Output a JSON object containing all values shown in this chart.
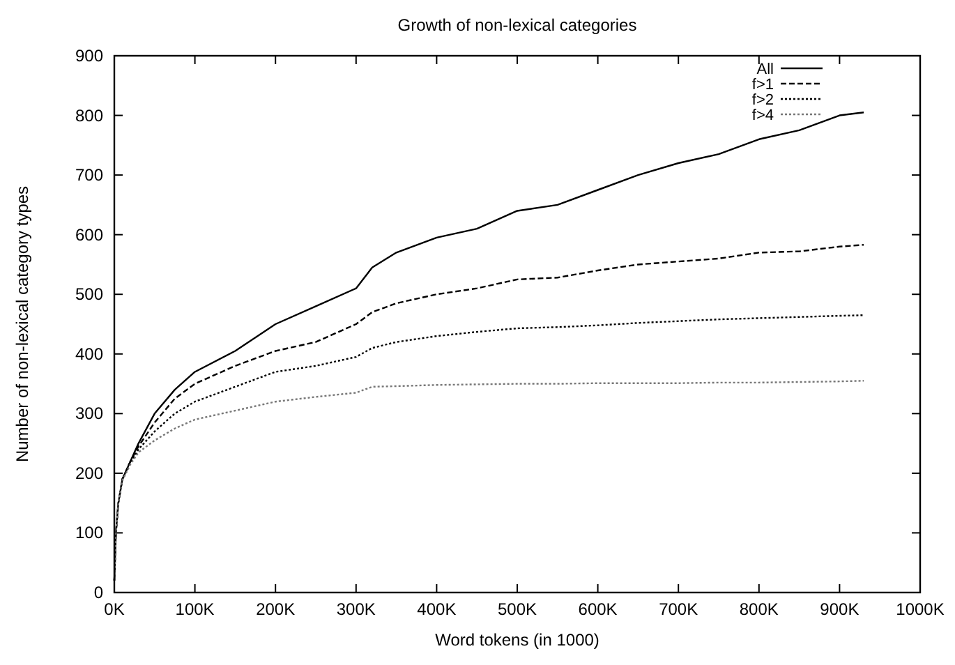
{
  "chart_data": {
    "type": "line",
    "title": "Growth of non-lexical categories",
    "xlabel": "Word tokens (in 1000)",
    "ylabel": "Number of non-lexical category types",
    "x": [
      0,
      2,
      5,
      10,
      20,
      30,
      50,
      75,
      100,
      150,
      200,
      250,
      300,
      320,
      350,
      400,
      450,
      500,
      550,
      600,
      650,
      700,
      750,
      800,
      850,
      900,
      930
    ],
    "series": [
      {
        "name": "All",
        "color": "#000000",
        "line_style": "solid",
        "values": [
          20,
          100,
          150,
          190,
          220,
          250,
          300,
          340,
          370,
          405,
          450,
          480,
          510,
          545,
          570,
          595,
          610,
          640,
          650,
          675,
          700,
          720,
          735,
          760,
          775,
          800,
          805
        ]
      },
      {
        "name": "f>1",
        "color": "#000000",
        "line_style": "dashed",
        "values": [
          20,
          100,
          150,
          190,
          220,
          245,
          285,
          325,
          350,
          380,
          405,
          420,
          450,
          470,
          485,
          500,
          510,
          525,
          528,
          540,
          550,
          555,
          560,
          570,
          572,
          580,
          583
        ]
      },
      {
        "name": "f>2",
        "color": "#000000",
        "line_style": "dotted",
        "values": [
          20,
          100,
          150,
          190,
          218,
          240,
          270,
          300,
          320,
          345,
          370,
          380,
          395,
          410,
          420,
          430,
          437,
          443,
          445,
          448,
          452,
          455,
          458,
          460,
          462,
          464,
          465
        ]
      },
      {
        "name": "f>4",
        "color": "#777777",
        "line_style": "dotted",
        "values": [
          20,
          100,
          150,
          188,
          215,
          235,
          255,
          275,
          290,
          305,
          320,
          328,
          335,
          345,
          346,
          348,
          349,
          350,
          350,
          351,
          351,
          351,
          352,
          352,
          353,
          354,
          355
        ]
      }
    ],
    "xlim": [
      0,
      1000
    ],
    "xticks": [
      {
        "value": 0,
        "label": "0K"
      },
      {
        "value": 100,
        "label": "100K"
      },
      {
        "value": 200,
        "label": "200K"
      },
      {
        "value": 300,
        "label": "300K"
      },
      {
        "value": 400,
        "label": "400K"
      },
      {
        "value": 500,
        "label": "500K"
      },
      {
        "value": 600,
        "label": "600K"
      },
      {
        "value": 700,
        "label": "700K"
      },
      {
        "value": 800,
        "label": "800K"
      },
      {
        "value": 900,
        "label": "900K"
      },
      {
        "value": 1000,
        "label": "1000K"
      }
    ],
    "ylim": [
      0,
      900
    ],
    "yticks": [
      0,
      100,
      200,
      300,
      400,
      500,
      600,
      700,
      800,
      900
    ],
    "grid": false,
    "legend": "top right"
  }
}
